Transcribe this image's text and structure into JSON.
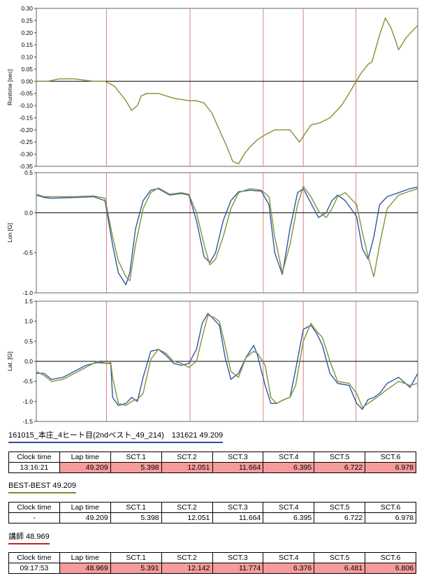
{
  "charts": {
    "sector_lines": [
      0.184,
      0.403,
      0.595,
      0.7,
      0.838
    ],
    "colors": {
      "blue": "#3355a5",
      "green": "#7e9436",
      "sector": "#e08080"
    }
  },
  "chart_data": [
    {
      "type": "line",
      "title": "",
      "xlabel": "",
      "ylabel": "Runtime [sec]",
      "ylim": [
        -0.35,
        0.3
      ],
      "yticks": [
        "0.30",
        "0.25",
        "0.20",
        "0.15",
        "0.10",
        "0.05",
        "0.00",
        "-0.05",
        "-0.10",
        "-0.15",
        "-0.20",
        "-0.25",
        "-0.30",
        "-0.35"
      ],
      "ytick_values": [
        0.3,
        0.25,
        0.2,
        0.15,
        0.1,
        0.05,
        0.0,
        -0.05,
        -0.1,
        -0.15,
        -0.2,
        -0.25,
        -0.3,
        -0.35
      ],
      "zero_line": 0.0,
      "x": [
        0,
        0.03,
        0.06,
        0.1,
        0.15,
        0.18,
        0.205,
        0.22,
        0.235,
        0.25,
        0.265,
        0.275,
        0.29,
        0.32,
        0.36,
        0.4,
        0.42,
        0.44,
        0.46,
        0.48,
        0.5,
        0.515,
        0.53,
        0.545,
        0.56,
        0.58,
        0.6,
        0.625,
        0.645,
        0.665,
        0.69,
        0.72,
        0.745,
        0.77,
        0.8,
        0.82,
        0.85,
        0.87,
        0.88,
        0.9,
        0.915,
        0.93,
        0.95,
        0.97,
        1.0
      ],
      "series": [
        {
          "color": "green",
          "values": [
            0.0,
            0.0,
            0.01,
            0.01,
            0.0,
            0.0,
            -0.02,
            -0.05,
            -0.08,
            -0.12,
            -0.1,
            -0.06,
            -0.05,
            -0.05,
            -0.07,
            -0.08,
            -0.08,
            -0.09,
            -0.13,
            -0.2,
            -0.27,
            -0.33,
            -0.34,
            -0.3,
            -0.27,
            -0.24,
            -0.22,
            -0.2,
            -0.2,
            -0.2,
            -0.25,
            -0.18,
            -0.17,
            -0.15,
            -0.1,
            -0.05,
            0.03,
            0.07,
            0.08,
            0.19,
            0.26,
            0.22,
            0.13,
            0.18,
            0.23
          ]
        }
      ]
    },
    {
      "type": "line",
      "title": "",
      "xlabel": "",
      "ylabel": "Lon [G]",
      "ylim": [
        -1.0,
        0.5
      ],
      "yticks": [
        "0.5",
        "0.0",
        "-0.5",
        "-1.0"
      ],
      "ytick_values": [
        0.5,
        0.0,
        -0.5,
        -1.0
      ],
      "zero_line": 0.0,
      "x": [
        0,
        0.02,
        0.04,
        0.1,
        0.15,
        0.18,
        0.2,
        0.215,
        0.235,
        0.245,
        0.26,
        0.28,
        0.3,
        0.32,
        0.35,
        0.38,
        0.4,
        0.42,
        0.44,
        0.455,
        0.47,
        0.49,
        0.51,
        0.53,
        0.56,
        0.59,
        0.61,
        0.625,
        0.645,
        0.665,
        0.685,
        0.7,
        0.72,
        0.74,
        0.76,
        0.775,
        0.79,
        0.81,
        0.84,
        0.855,
        0.87,
        0.885,
        0.9,
        0.92,
        0.95,
        0.98,
        1.0
      ],
      "series": [
        {
          "color": "blue",
          "values": [
            0.22,
            0.19,
            0.18,
            0.19,
            0.2,
            0.15,
            -0.4,
            -0.75,
            -0.9,
            -0.75,
            -0.2,
            0.15,
            0.28,
            0.3,
            0.22,
            0.24,
            0.22,
            -0.1,
            -0.55,
            -0.62,
            -0.5,
            -0.1,
            0.15,
            0.26,
            0.28,
            0.27,
            0.1,
            -0.5,
            -0.77,
            -0.2,
            0.25,
            0.3,
            0.12,
            -0.06,
            0.0,
            0.15,
            0.22,
            0.15,
            -0.05,
            -0.45,
            -0.58,
            -0.3,
            0.1,
            0.2,
            0.25,
            0.3,
            0.32
          ]
        },
        {
          "color": "green",
          "values": [
            0.23,
            0.2,
            0.2,
            0.2,
            0.21,
            0.18,
            -0.3,
            -0.6,
            -0.8,
            -0.85,
            -0.4,
            0.05,
            0.25,
            0.31,
            0.23,
            0.25,
            0.23,
            0.0,
            -0.4,
            -0.65,
            -0.58,
            -0.3,
            0.05,
            0.25,
            0.3,
            0.28,
            0.2,
            -0.3,
            -0.75,
            -0.4,
            0.1,
            0.33,
            0.2,
            0.02,
            -0.06,
            0.05,
            0.2,
            0.25,
            0.1,
            -0.25,
            -0.55,
            -0.8,
            -0.4,
            0.05,
            0.22,
            0.27,
            0.3
          ]
        }
      ]
    },
    {
      "type": "line",
      "title": "",
      "xlabel": "",
      "ylabel": "Lat. [G]",
      "ylim": [
        -1.5,
        1.5
      ],
      "yticks": [
        "1.5",
        "1.0",
        "0.5",
        "0.0",
        "-0.5",
        "-1.0",
        "-1.5"
      ],
      "ytick_values": [
        1.5,
        1.0,
        0.5,
        0.0,
        -0.5,
        -1.0,
        -1.5
      ],
      "zero_line": 0.0,
      "x": [
        0,
        0.02,
        0.04,
        0.07,
        0.1,
        0.13,
        0.16,
        0.185,
        0.195,
        0.2,
        0.215,
        0.235,
        0.25,
        0.265,
        0.28,
        0.3,
        0.32,
        0.34,
        0.36,
        0.38,
        0.4,
        0.42,
        0.435,
        0.45,
        0.465,
        0.48,
        0.495,
        0.51,
        0.53,
        0.55,
        0.57,
        0.58,
        0.6,
        0.615,
        0.63,
        0.65,
        0.665,
        0.68,
        0.7,
        0.72,
        0.735,
        0.75,
        0.77,
        0.79,
        0.82,
        0.84,
        0.855,
        0.87,
        0.885,
        0.9,
        0.92,
        0.95,
        0.98,
        1.0
      ],
      "series": [
        {
          "color": "blue",
          "values": [
            -0.3,
            -0.3,
            -0.45,
            -0.4,
            -0.25,
            -0.1,
            -0.03,
            -0.05,
            -0.05,
            -0.9,
            -1.1,
            -1.05,
            -0.9,
            -1.0,
            -0.4,
            0.25,
            0.3,
            0.15,
            -0.05,
            -0.1,
            -0.05,
            0.3,
            0.95,
            1.2,
            1.05,
            0.9,
            0.1,
            -0.45,
            -0.3,
            0.1,
            0.4,
            0.15,
            -0.6,
            -1.05,
            -1.05,
            -0.95,
            -0.9,
            -0.2,
            0.8,
            0.9,
            0.7,
            0.4,
            -0.3,
            -0.55,
            -0.6,
            -1.05,
            -1.2,
            -0.95,
            -0.9,
            -0.8,
            -0.55,
            -0.4,
            -0.65,
            -0.3
          ]
        },
        {
          "color": "green",
          "values": [
            -0.25,
            -0.35,
            -0.5,
            -0.45,
            -0.3,
            -0.15,
            0.0,
            -0.05,
            -0.03,
            -0.4,
            -1.05,
            -1.1,
            -1.0,
            -0.95,
            -0.8,
            0.05,
            0.3,
            0.2,
            0.0,
            -0.05,
            -0.15,
            0.0,
            0.6,
            1.15,
            1.1,
            1.0,
            0.4,
            -0.25,
            -0.4,
            0.1,
            0.25,
            0.2,
            -0.1,
            -0.9,
            -1.05,
            -0.95,
            -0.9,
            -0.6,
            0.5,
            0.95,
            0.75,
            0.6,
            0.0,
            -0.5,
            -0.55,
            -0.8,
            -1.15,
            -1.05,
            -0.95,
            -0.85,
            -0.7,
            -0.5,
            -0.6,
            -0.55
          ]
        }
      ]
    }
  ],
  "sections": [
    {
      "title": "161015_本庄_4ヒート目(2ndベスト_49_214)　131621 49.209",
      "headers": [
        "Clock time",
        "Lap time",
        "SCT.1",
        "SCT.2",
        "SCT.3",
        "SCT.4",
        "SCT.5",
        "SCT.6"
      ],
      "values": [
        "13:16:21",
        "49.209",
        "5.398",
        "12.051",
        "11.664",
        "6.395",
        "6.722",
        "6.978"
      ]
    },
    {
      "title": "BEST-BEST 49.209",
      "headers": [
        "Clock time",
        "Lap time",
        "SCT.1",
        "SCT.2",
        "SCT.3",
        "SCT.4",
        "SCT.5",
        "SCT.6"
      ],
      "values": [
        "-",
        "49.209",
        "5.398",
        "12.051",
        "11.664",
        "6.395",
        "6.722",
        "6.978"
      ]
    },
    {
      "title": "講師 48.969",
      "headers": [
        "Clock time",
        "Lap time",
        "SCT.1",
        "SCT.2",
        "SCT.3",
        "SCT.4",
        "SCT.5",
        "SCT.6"
      ],
      "values": [
        "09:17:53",
        "48.969",
        "5.391",
        "12.142",
        "11.774",
        "6.376",
        "6.481",
        "6.806"
      ]
    }
  ]
}
